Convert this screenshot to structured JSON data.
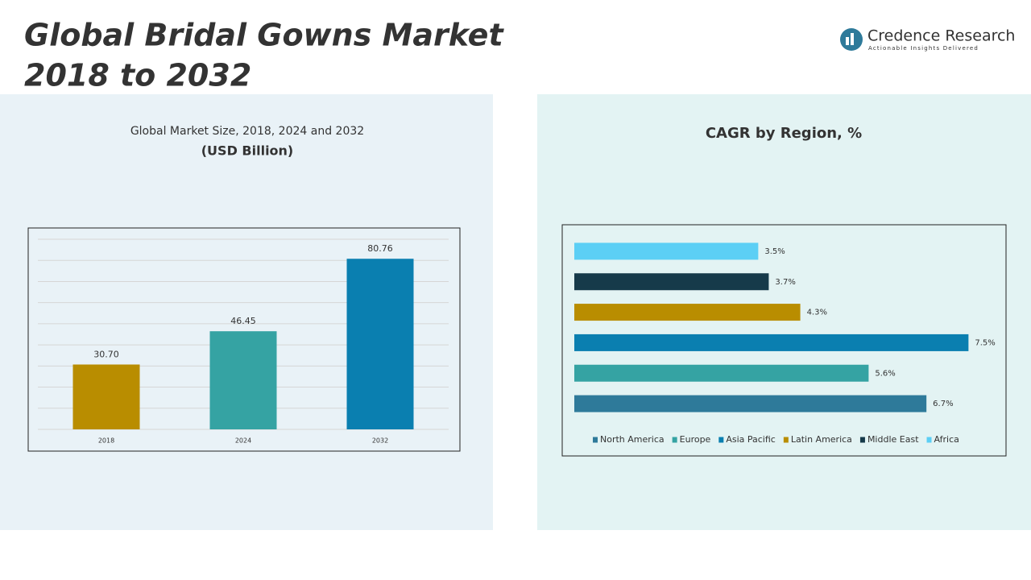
{
  "title_lines": [
    "Global Bridal Gowns Market",
    "2018 to 2032"
  ],
  "brand": {
    "name": "Credence Research",
    "tagline": "Actionable Insights Delivered"
  },
  "chart_data": [
    {
      "type": "bar",
      "orientation": "vertical",
      "title": "Global Market Size, 2018, 2024 and 2032",
      "subtitle": "(USD Billion)",
      "categories": [
        "2018",
        "2024",
        "2032"
      ],
      "values": [
        30.7,
        46.45,
        80.76
      ],
      "value_labels": [
        "30.70",
        "46.45",
        "80.76"
      ],
      "colors": [
        "#b98d00",
        "#35a3a3",
        "#0a7fb0"
      ],
      "ylim": [
        0,
        90
      ],
      "yticks": [
        0,
        10,
        20,
        30,
        40,
        50,
        60,
        70,
        80,
        90
      ],
      "grid": true
    },
    {
      "type": "bar",
      "orientation": "horizontal",
      "title": "CAGR by Region, %",
      "categories": [
        "North America",
        "Europe",
        "Asia Pacific",
        "Latin America",
        "Middle East",
        "Africa"
      ],
      "values": [
        6.7,
        5.6,
        7.5,
        4.3,
        3.7,
        3.5
      ],
      "value_labels": [
        "6.7%",
        "5.6%",
        "7.5%",
        "4.3%",
        "3.7%",
        "3.5%"
      ],
      "colors": [
        "#2e7a9a",
        "#35a3a3",
        "#0a7fb0",
        "#b98d00",
        "#163a4a",
        "#5ccff5"
      ],
      "xlim": [
        0,
        8
      ],
      "legend": "bottom"
    }
  ]
}
